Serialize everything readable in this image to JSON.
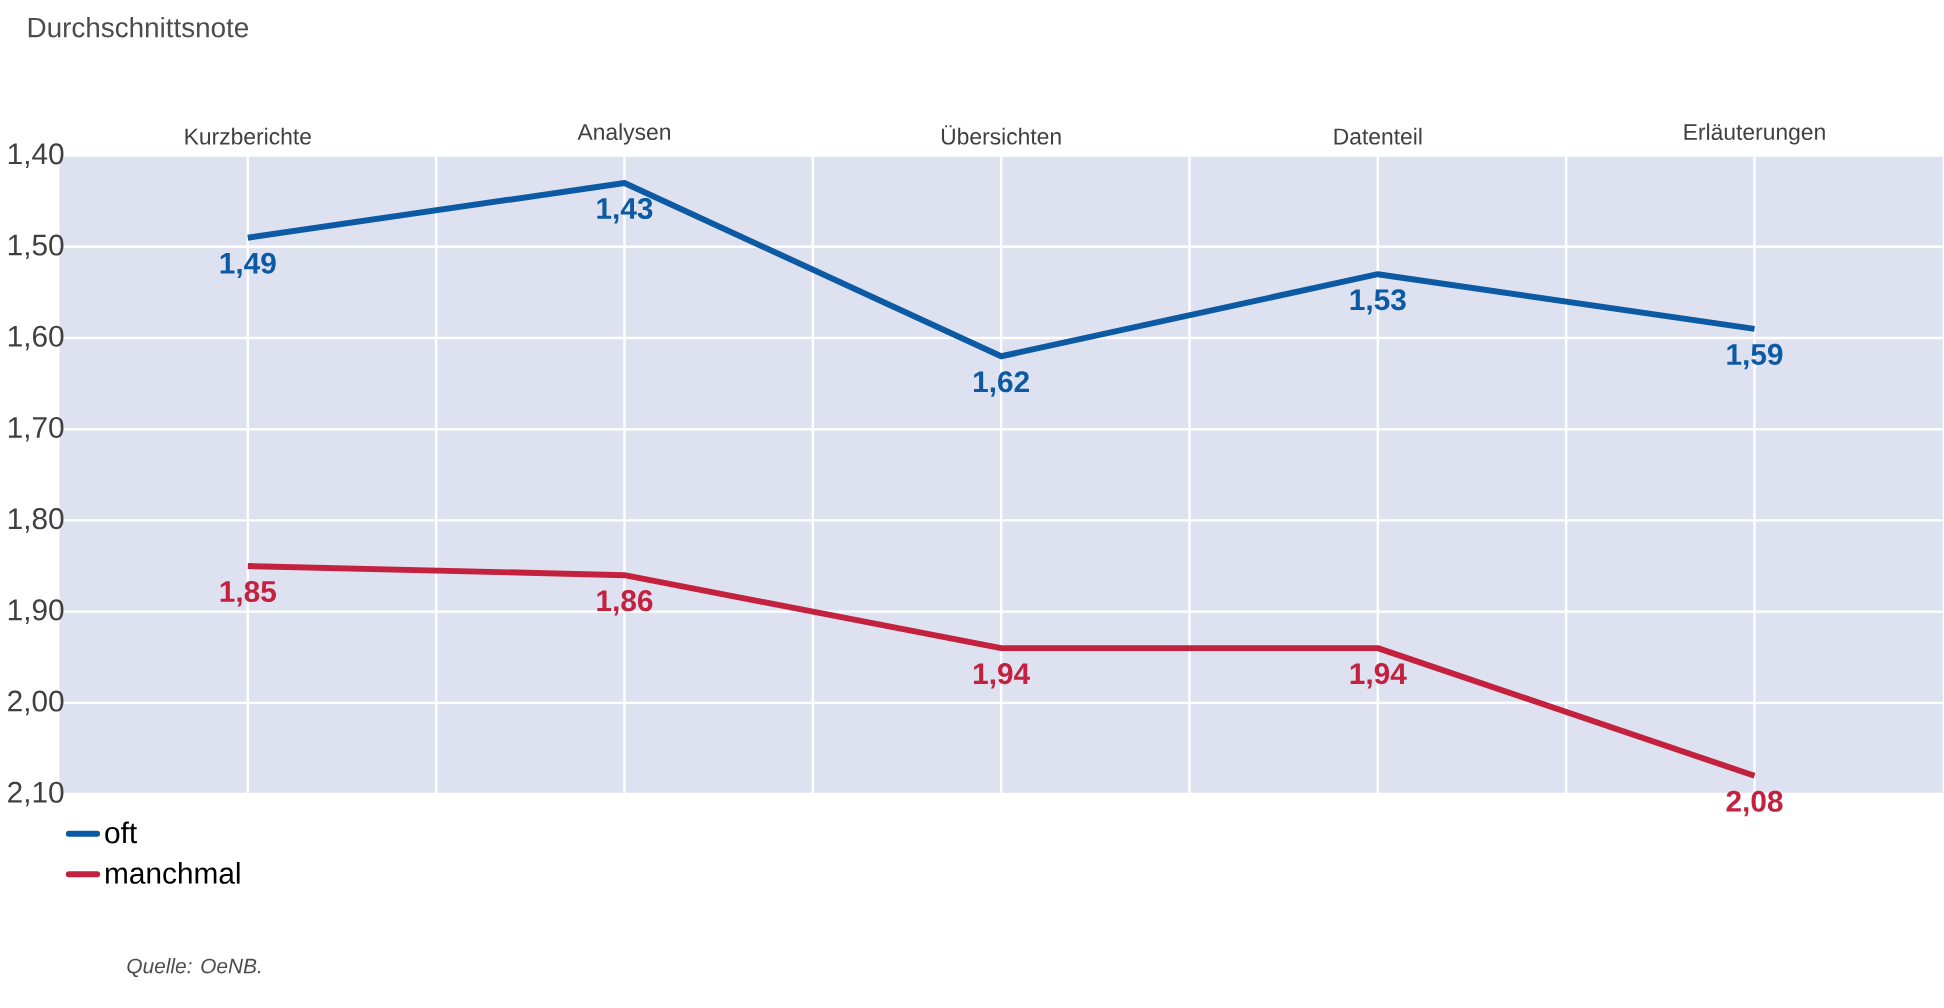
{
  "chart_data": {
    "type": "line",
    "ylabel": "Durchschnittsnote",
    "categories": [
      "Kurzberichte",
      "Analysen",
      "Übersichten",
      "Datenteil",
      "Erläuterungen"
    ],
    "series": [
      {
        "name": "oft",
        "color": "#0b5aa3",
        "values": [
          1.49,
          1.43,
          1.62,
          1.53,
          1.59
        ],
        "value_labels": [
          "1,49",
          "1,43",
          "1,62",
          "1,53",
          "1,59"
        ]
      },
      {
        "name": "manchmal",
        "color": "#c4213f",
        "values": [
          1.85,
          1.86,
          1.94,
          1.94,
          2.08
        ],
        "value_labels": [
          "1,85",
          "1,86",
          "1,94",
          "1,94",
          "2,08"
        ]
      }
    ],
    "ylim": [
      2.1,
      1.4
    ],
    "yticks": [
      {
        "value": 1.4,
        "label": "1,40"
      },
      {
        "value": 1.5,
        "label": "1,50"
      },
      {
        "value": 1.6,
        "label": "1,60"
      },
      {
        "value": 1.7,
        "label": "1,70"
      },
      {
        "value": 1.8,
        "label": "1,80"
      },
      {
        "value": 1.9,
        "label": "1,90"
      },
      {
        "value": 2.0,
        "label": "2,00"
      },
      {
        "value": 2.1,
        "label": "2,10"
      }
    ],
    "grid": true,
    "legend": "bottom left",
    "marker": "none",
    "line_style": "solid",
    "annotations": [
      "Quelle: OeNB."
    ]
  }
}
